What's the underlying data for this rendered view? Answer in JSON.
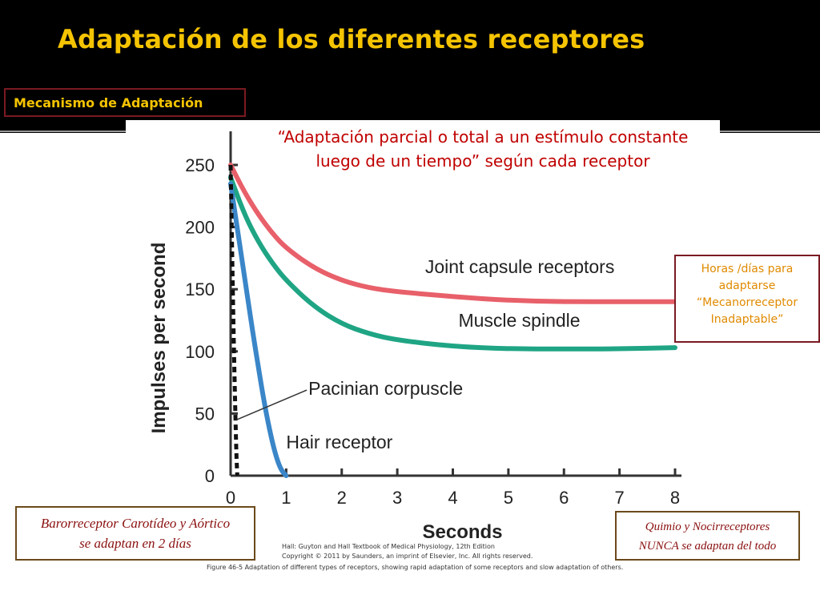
{
  "slide": {
    "title": "Adaptación de los diferentes receptores",
    "mechanism_label": "Mecanismo de Adaptación",
    "quote_line1": "“Adaptación parcial o total a un estímulo constante",
    "quote_line2": "luego de un tiempo” según cada receptor",
    "horas_box": [
      "Horas /días para",
      "adaptarse",
      "“Mecanorreceptor",
      "Inadaptable”"
    ],
    "baro_box": [
      "Barorreceptor Carotídeo y Aórtico",
      "se adaptan en 2 días"
    ],
    "quimio_box": [
      "Quimio y Nocirreceptores",
      "NUNCA se adaptan del todo"
    ],
    "credit_line1": "Hall: Guyton and Hall Textbook of Medical Physiology, 12th Edition",
    "credit_line2": "Copyright © 2011 by Saunders, an imprint of Elsevier, Inc. All rights reserved.",
    "caption": "Figure 46-5 Adaptation of different types of receptors, showing rapid adaptation of some receptors and slow adaptation of others.",
    "colors": {
      "title": "#f5c400",
      "quote": "#c00000",
      "joint": "#e8606a",
      "spindle": "#1fa584",
      "hair": "#3a86c8",
      "pacinian": "#111111"
    }
  },
  "chart_data": {
    "type": "line",
    "xlabel": "Seconds",
    "ylabel": "Impulses per second",
    "xlim": [
      0,
      8
    ],
    "ylim": [
      0,
      250
    ],
    "xticks": [
      0,
      1,
      2,
      3,
      4,
      5,
      6,
      7,
      8
    ],
    "yticks": [
      0,
      50,
      100,
      150,
      200,
      250
    ],
    "grid": false,
    "series": [
      {
        "name": "Joint capsule receptors",
        "color": "#e8606a",
        "style": "solid",
        "x": [
          0,
          0.25,
          0.5,
          0.75,
          1,
          1.5,
          2,
          2.5,
          3,
          4,
          5,
          6,
          7,
          8
        ],
        "y": [
          250,
          228,
          210,
          195,
          183,
          167,
          157,
          151,
          148,
          144,
          141,
          140,
          140,
          140
        ]
      },
      {
        "name": "Muscle spindle",
        "color": "#1fa584",
        "style": "solid",
        "x": [
          0,
          0.25,
          0.5,
          0.75,
          1,
          1.5,
          2,
          2.5,
          3,
          4,
          5,
          6,
          7,
          8
        ],
        "y": [
          240,
          210,
          188,
          171,
          157,
          136,
          122,
          114,
          109,
          104,
          102,
          102,
          102,
          103
        ]
      },
      {
        "name": "Hair receptor",
        "color": "#3a86c8",
        "style": "solid",
        "x": [
          0,
          0.1,
          0.2,
          0.3,
          0.4,
          0.5,
          0.6,
          0.7,
          0.8,
          0.9,
          1.0
        ],
        "y": [
          235,
          205,
          175,
          145,
          115,
          87,
          60,
          37,
          18,
          5,
          0
        ]
      },
      {
        "name": "Pacinian corpuscle",
        "color": "#111111",
        "style": "dashed",
        "x": [
          0,
          0.05,
          0.1,
          0.12
        ],
        "y": [
          250,
          120,
          20,
          0
        ]
      }
    ],
    "annotations": [
      {
        "text": "Joint capsule receptors",
        "x": 3.5,
        "y": 163
      },
      {
        "text": "Muscle spindle",
        "x": 4.1,
        "y": 120
      },
      {
        "text": "Pacinian corpuscle",
        "x": 1.4,
        "y": 65,
        "pointer_to": {
          "x": 0.05,
          "y": 45
        }
      },
      {
        "text": "Hair receptor",
        "x": 1.0,
        "y": 22
      }
    ]
  }
}
